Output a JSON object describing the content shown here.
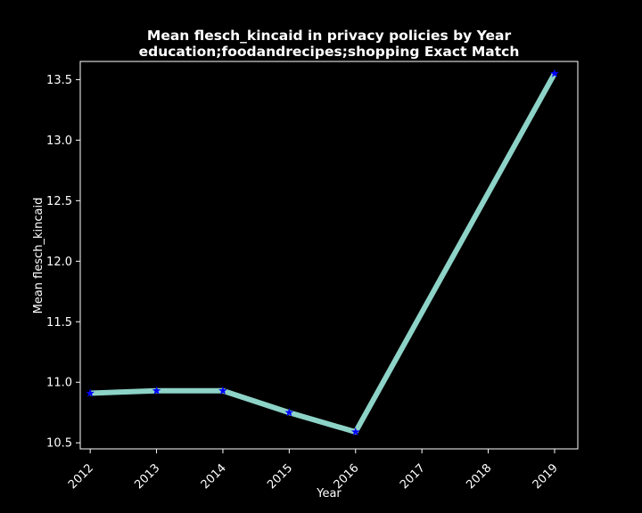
{
  "chart_data": {
    "type": "line",
    "title": "Mean flesch_kincaid in privacy policies by Year",
    "subtitle": "education;foodandrecipes;shopping Exact Match",
    "xlabel": "Year",
    "ylabel": "Mean flesch_kincaid",
    "x": [
      2012,
      2013,
      2014,
      2015,
      2016,
      2019
    ],
    "x_ticks": [
      2012,
      2013,
      2014,
      2015,
      2016,
      2017,
      2018,
      2019
    ],
    "y_ticks": [
      10.5,
      11.0,
      11.5,
      12.0,
      12.5,
      13.0,
      13.5
    ],
    "xlim": [
      2011.85,
      2019.35
    ],
    "ylim": [
      10.45,
      13.65
    ],
    "series": [
      {
        "values": [
          10.91,
          10.93,
          10.93,
          10.75,
          10.59,
          13.55
        ]
      }
    ],
    "line_color": "#8dd3c7",
    "marker_color": "#0000ff",
    "marker": "star",
    "grid": false,
    "legend": "none"
  }
}
